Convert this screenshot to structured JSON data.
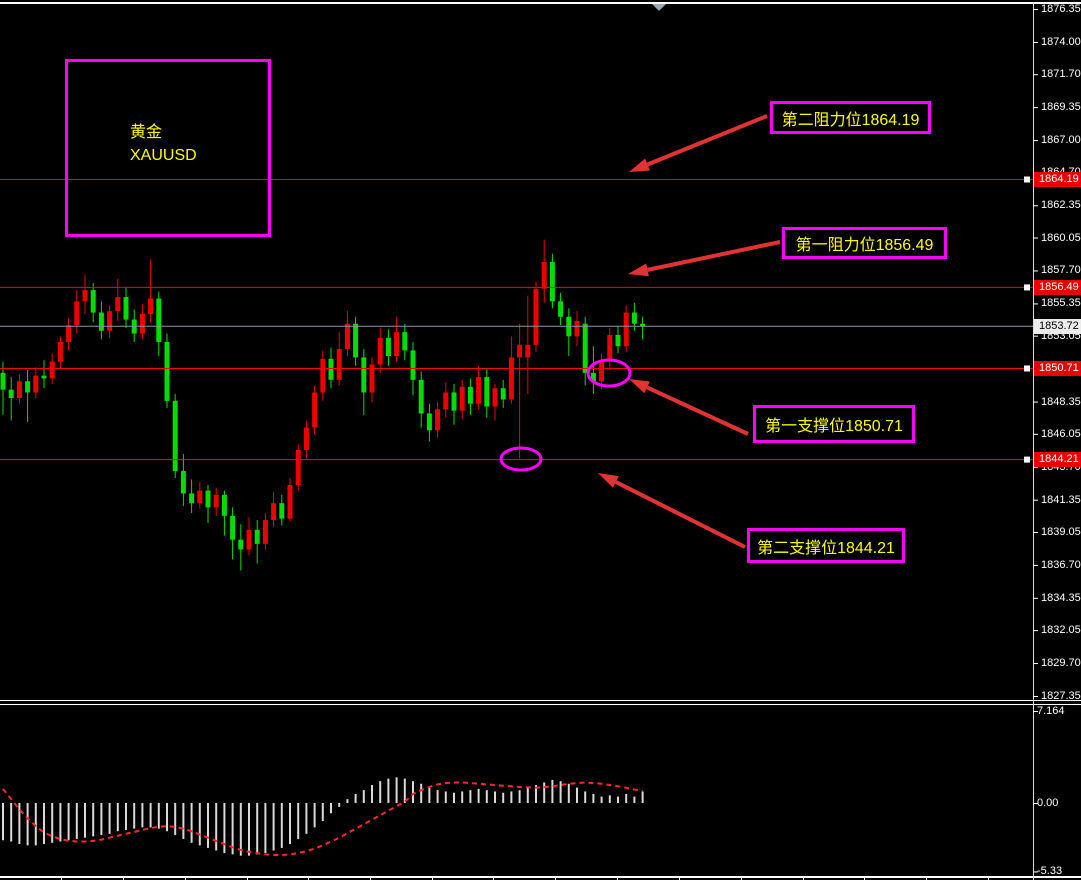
{
  "symbol_box": {
    "line1": "黄金",
    "line2": "XAUUSD"
  },
  "annotations": {
    "r2": {
      "label": "第二阻力位1864.19"
    },
    "r1": {
      "label": "第一阻力位1856.49"
    },
    "s1": {
      "label": "第一支撑位1850.71"
    },
    "s2": {
      "label": "第二支撑位1844.21"
    }
  },
  "price_tags": {
    "r2": "1864.19",
    "r1": "1856.49",
    "s1": "1850.71",
    "s2": "1844.21",
    "current": "1853.72"
  },
  "indicator_axis_labels": {
    "max": "7.164",
    "zero": "0.00",
    "min": "-5.33"
  },
  "colors": {
    "background": "#000000",
    "bull_candle": "#ee0000",
    "bear_candle": "#00dd00",
    "level_line": "#ff0000",
    "current_price_line": "#8a96a8",
    "tag_red_bg": "#e80000",
    "current_tag_bg": "#ececec",
    "annotation_border": "#ff00ff",
    "annotation_text": "#ffff00",
    "arrow": "#e23333",
    "histogram_bar": "#d9d9d9",
    "signal_line": "#ff2828",
    "axis_text": "#ffffff"
  },
  "chart_data": {
    "type": "candlestick_with_oscillator_histogram",
    "symbol": "XAUUSD",
    "y_axis_labels": [
      "1876.35",
      "1874.00",
      "1871.70",
      "1869.35",
      "1867.00",
      "1864.70",
      "1862.35",
      "1860.05",
      "1857.70",
      "1855.35",
      "1853.05",
      "1850.70",
      "1848.35",
      "1846.05",
      "1843.70",
      "1841.35",
      "1839.05",
      "1836.70",
      "1834.35",
      "1832.05",
      "1829.70",
      "1827.35"
    ],
    "main_axis_range": [
      1827.35,
      1876.35
    ],
    "indicator_axis_range": [
      -5.33,
      7.164
    ],
    "hlines": [
      1864.19,
      1856.49,
      1850.71,
      1844.21
    ],
    "current_price": 1853.72,
    "candles": [
      [
        1850.4,
        1851.2,
        1847.4,
        1849.2
      ],
      [
        1849.2,
        1850.1,
        1847.0,
        1848.6
      ],
      [
        1848.6,
        1850.3,
        1848.2,
        1849.8
      ],
      [
        1849.8,
        1850.6,
        1846.9,
        1849.0
      ],
      [
        1849.0,
        1850.8,
        1848.6,
        1850.2
      ],
      [
        1850.2,
        1851.3,
        1849.3,
        1850.0
      ],
      [
        1850.0,
        1851.8,
        1849.6,
        1851.2
      ],
      [
        1851.2,
        1853.0,
        1850.7,
        1852.6
      ],
      [
        1852.6,
        1854.3,
        1852.0,
        1853.8
      ],
      [
        1853.8,
        1856.3,
        1853.2,
        1855.5
      ],
      [
        1855.5,
        1857.4,
        1854.6,
        1856.3
      ],
      [
        1856.3,
        1856.8,
        1854.0,
        1854.7
      ],
      [
        1854.7,
        1855.5,
        1852.8,
        1853.4
      ],
      [
        1853.4,
        1855.2,
        1852.9,
        1854.8
      ],
      [
        1854.8,
        1857.1,
        1854.1,
        1855.8
      ],
      [
        1855.8,
        1856.5,
        1853.6,
        1854.2
      ],
      [
        1854.2,
        1854.9,
        1852.6,
        1853.2
      ],
      [
        1853.2,
        1855.3,
        1852.8,
        1854.6
      ],
      [
        1854.6,
        1858.5,
        1854.0,
        1855.7
      ],
      [
        1855.7,
        1856.2,
        1851.6,
        1852.6
      ],
      [
        1852.6,
        1853.2,
        1847.9,
        1848.4
      ],
      [
        1848.4,
        1848.9,
        1842.9,
        1843.4
      ],
      [
        1843.4,
        1844.6,
        1840.9,
        1841.8
      ],
      [
        1841.8,
        1842.8,
        1840.4,
        1841.1
      ],
      [
        1841.1,
        1842.6,
        1840.7,
        1842.0
      ],
      [
        1842.0,
        1842.4,
        1839.7,
        1840.8
      ],
      [
        1840.8,
        1842.2,
        1840.2,
        1841.7
      ],
      [
        1841.7,
        1842.0,
        1838.8,
        1840.2
      ],
      [
        1840.2,
        1840.8,
        1837.1,
        1838.5
      ],
      [
        1838.5,
        1839.6,
        1836.3,
        1837.8
      ],
      [
        1837.8,
        1840.1,
        1837.4,
        1839.2
      ],
      [
        1839.2,
        1839.9,
        1836.8,
        1838.2
      ],
      [
        1838.2,
        1840.4,
        1837.8,
        1839.9
      ],
      [
        1839.9,
        1841.9,
        1839.4,
        1841.1
      ],
      [
        1841.1,
        1841.7,
        1839.5,
        1840.0
      ],
      [
        1840.0,
        1842.9,
        1839.8,
        1842.4
      ],
      [
        1842.4,
        1845.3,
        1842.0,
        1844.9
      ],
      [
        1844.9,
        1847.0,
        1844.3,
        1846.5
      ],
      [
        1846.5,
        1849.5,
        1846.0,
        1849.0
      ],
      [
        1849.0,
        1852.0,
        1848.4,
        1851.4
      ],
      [
        1851.4,
        1852.2,
        1849.3,
        1849.9
      ],
      [
        1849.9,
        1853.3,
        1849.5,
        1852.1
      ],
      [
        1852.1,
        1854.8,
        1851.6,
        1853.9
      ],
      [
        1853.9,
        1854.4,
        1850.9,
        1851.5
      ],
      [
        1851.5,
        1852.1,
        1847.4,
        1849.0
      ],
      [
        1849.0,
        1851.5,
        1848.3,
        1851.0
      ],
      [
        1851.0,
        1853.6,
        1850.4,
        1852.9
      ],
      [
        1852.9,
        1853.5,
        1850.9,
        1851.6
      ],
      [
        1851.6,
        1854.4,
        1851.2,
        1853.3
      ],
      [
        1853.3,
        1853.9,
        1851.3,
        1852.0
      ],
      [
        1852.0,
        1852.6,
        1848.8,
        1849.9
      ],
      [
        1849.9,
        1850.5,
        1846.5,
        1847.5
      ],
      [
        1847.5,
        1848.2,
        1845.5,
        1846.3
      ],
      [
        1846.3,
        1848.3,
        1845.8,
        1847.8
      ],
      [
        1847.8,
        1849.7,
        1847.2,
        1849.0
      ],
      [
        1849.0,
        1849.6,
        1846.7,
        1847.7
      ],
      [
        1847.7,
        1849.9,
        1847.1,
        1849.4
      ],
      [
        1849.4,
        1850.0,
        1847.4,
        1848.2
      ],
      [
        1848.2,
        1850.9,
        1847.8,
        1850.1
      ],
      [
        1850.1,
        1850.7,
        1847.2,
        1848.0
      ],
      [
        1848.0,
        1849.6,
        1847.0,
        1849.3
      ],
      [
        1849.3,
        1849.9,
        1847.9,
        1848.5
      ],
      [
        1848.5,
        1853.0,
        1848.2,
        1851.5
      ],
      [
        1851.5,
        1853.9,
        1844.3,
        1852.4
      ],
      [
        1851.5,
        1855.9,
        1848.9,
        1852.4
      ],
      [
        1852.4,
        1856.9,
        1851.9,
        1856.4
      ],
      [
        1856.4,
        1859.9,
        1855.4,
        1858.3
      ],
      [
        1858.3,
        1858.9,
        1855.0,
        1855.5
      ],
      [
        1855.5,
        1856.1,
        1853.8,
        1854.4
      ],
      [
        1854.4,
        1855.0,
        1851.6,
        1853.0
      ],
      [
        1853.0,
        1854.8,
        1852.3,
        1854.1
      ],
      [
        1853.9,
        1854.4,
        1849.5,
        1850.4
      ],
      [
        1850.4,
        1852.3,
        1848.9,
        1849.8
      ],
      [
        1849.8,
        1851.8,
        1849.2,
        1851.2
      ],
      [
        1851.2,
        1853.6,
        1850.6,
        1853.1
      ],
      [
        1853.1,
        1853.7,
        1851.8,
        1852.3
      ],
      [
        1852.3,
        1855.2,
        1851.9,
        1854.7
      ],
      [
        1854.7,
        1855.4,
        1853.4,
        1853.9
      ],
      [
        1853.9,
        1854.4,
        1852.8,
        1853.72
      ]
    ],
    "histogram": [
      -2.9,
      -3.0,
      -3.2,
      -3.3,
      -3.3,
      -3.2,
      -3.1,
      -3.0,
      -2.9,
      -2.8,
      -2.7,
      -2.6,
      -2.5,
      -2.4,
      -2.2,
      -2.1,
      -2.0,
      -1.9,
      -1.9,
      -2.0,
      -2.2,
      -2.5,
      -2.8,
      -3.1,
      -3.3,
      -3.5,
      -3.7,
      -3.9,
      -4.0,
      -4.1,
      -4.1,
      -4.0,
      -3.9,
      -3.7,
      -3.5,
      -3.2,
      -2.8,
      -2.4,
      -1.9,
      -1.4,
      -0.8,
      -0.3,
      0.3,
      0.7,
      1.0,
      1.4,
      1.7,
      1.9,
      2.0,
      1.9,
      1.7,
      1.5,
      1.2,
      1.0,
      0.9,
      0.8,
      0.9,
      1.0,
      1.1,
      1.0,
      0.9,
      0.8,
      0.9,
      1.0,
      1.2,
      1.4,
      1.6,
      1.8,
      1.7,
      1.5,
      1.2,
      0.9,
      0.7,
      0.5,
      0.6,
      0.5,
      0.7,
      0.5,
      0.9
    ],
    "signal": [
      1.1,
      0.3,
      -0.5,
      -1.2,
      -1.8,
      -2.3,
      -2.6,
      -2.8,
      -2.95,
      -3.0,
      -3.0,
      -2.95,
      -2.85,
      -2.7,
      -2.55,
      -2.4,
      -2.25,
      -2.1,
      -1.95,
      -1.85,
      -1.8,
      -1.85,
      -2.0,
      -2.2,
      -2.45,
      -2.7,
      -2.95,
      -3.2,
      -3.45,
      -3.65,
      -3.8,
      -3.9,
      -4.0,
      -4.05,
      -4.05,
      -4.0,
      -3.9,
      -3.75,
      -3.55,
      -3.3,
      -3.0,
      -2.7,
      -2.35,
      -2.0,
      -1.65,
      -1.3,
      -0.95,
      -0.6,
      -0.25,
      0.1,
      0.7,
      1.0,
      1.25,
      1.45,
      1.55,
      1.6,
      1.6,
      1.55,
      1.5,
      1.45,
      1.4,
      1.35,
      1.3,
      1.25,
      1.22,
      1.2,
      1.22,
      1.3,
      1.4,
      1.5,
      1.55,
      1.6,
      1.55,
      1.5,
      1.4,
      1.3,
      1.18,
      1.05,
      0.95
    ]
  }
}
